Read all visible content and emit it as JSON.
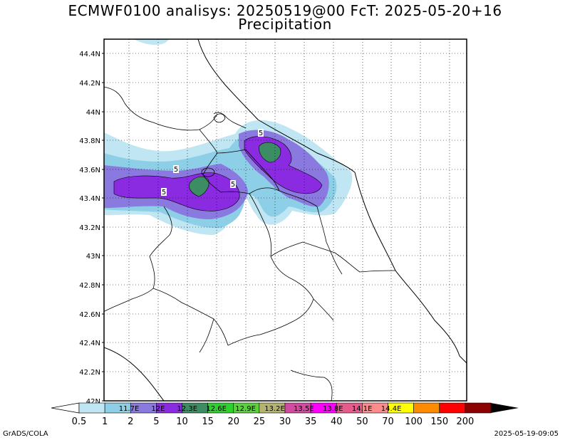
{
  "header": {
    "title": "ECMWF0100 analisys: 20250519@00 FcT: 2025-05-20+16",
    "subtitle": "Precipitation"
  },
  "map": {
    "lat_labels": [
      "44.4N",
      "44.2N",
      "44N",
      "43.8N",
      "43.6N",
      "43.4N",
      "43.2N",
      "43N",
      "42.8N",
      "42.6N",
      "42.4N",
      "42.2N",
      "42N"
    ],
    "lon_labels": [
      "11.7E",
      "12E",
      "12.3E",
      "12.6E",
      "12.9E",
      "13.2E",
      "13.5E",
      "13.8E",
      "14.1E",
      "14.4E"
    ],
    "contour_labels": [
      "5",
      "5",
      "5",
      "5"
    ],
    "colors": {
      "very_light": "#bfe6f2",
      "light": "#8ecfe8",
      "medium": "#8a79de",
      "strong": "#8a2be2",
      "peak": "#3c8c64",
      "grid": "#000000",
      "border": "#000000"
    }
  },
  "colorbar": {
    "levels": [
      "0.5",
      "1",
      "2",
      "5",
      "10",
      "15",
      "20",
      "25",
      "30",
      "35",
      "40",
      "50",
      "70",
      "100",
      "150",
      "200"
    ],
    "colors": [
      "#bfe6f2",
      "#8ecfe8",
      "#8a79de",
      "#8a2be2",
      "#3c8c64",
      "#2dd22d",
      "#5ad23c",
      "#b4b46e",
      "#d24ba0",
      "#ff00ff",
      "#e65a8c",
      "#ff8c8c",
      "#ffff00",
      "#ff8c00",
      "#ff0000",
      "#8b0000"
    ]
  },
  "footer": {
    "credit": "GrADS/COLA",
    "timestamp": "2025-05-19-09:05"
  }
}
